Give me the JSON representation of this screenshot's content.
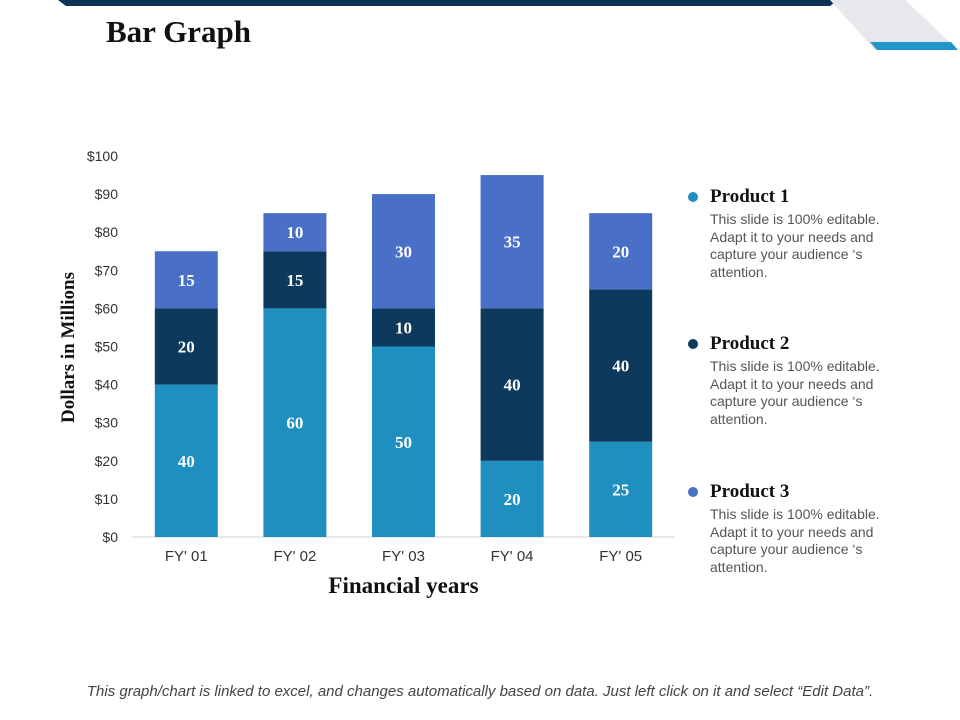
{
  "page_title": "Bar Graph",
  "colors": {
    "navy": "#0d3a5c",
    "teal": "#1f8fbf",
    "royal": "#4a6fc7",
    "topbar": "#0c3354",
    "accent": "#2196c9"
  },
  "chart_data": {
    "type": "bar",
    "stacked": true,
    "categories": [
      "FY' 01",
      "FY' 02",
      "FY' 03",
      "FY' 04",
      "FY' 05"
    ],
    "series": [
      {
        "name": "Product 1",
        "color": "#1f8fbf",
        "values": [
          40,
          60,
          50,
          20,
          25
        ]
      },
      {
        "name": "Product 2",
        "color": "#0d3a5c",
        "values": [
          20,
          15,
          10,
          40,
          40
        ]
      },
      {
        "name": "Product 3",
        "color": "#4a6fc7",
        "values": [
          15,
          10,
          30,
          35,
          20
        ]
      }
    ],
    "title": "",
    "xlabel": "Financial years",
    "ylabel": "Dollars in Millions",
    "ylim": [
      0,
      100
    ],
    "ytick_step": 10,
    "ytick_labels": [
      "$0",
      "$10",
      "$20",
      "$30",
      "$40",
      "$50",
      "$60",
      "$70",
      "$80",
      "$90",
      "$100"
    ]
  },
  "legend": [
    {
      "name": "Product 1",
      "color": "#1f8fbf",
      "description": "This slide is 100% editable. Adapt it to your needs and capture your  audience ‘s attention."
    },
    {
      "name": "Product 2",
      "color": "#0d3a5c",
      "description": "This slide is 100% editable. Adapt it to your needs and capture your  audience ‘s attention."
    },
    {
      "name": "Product 3",
      "color": "#4a6fc7",
      "description": "This slide is 100% editable. Adapt it to your needs and capture your  audience ‘s attention."
    }
  ],
  "footnote": "This graph/chart is linked to excel, and changes automatically based on data. Just left click on it and select “Edit Data”."
}
